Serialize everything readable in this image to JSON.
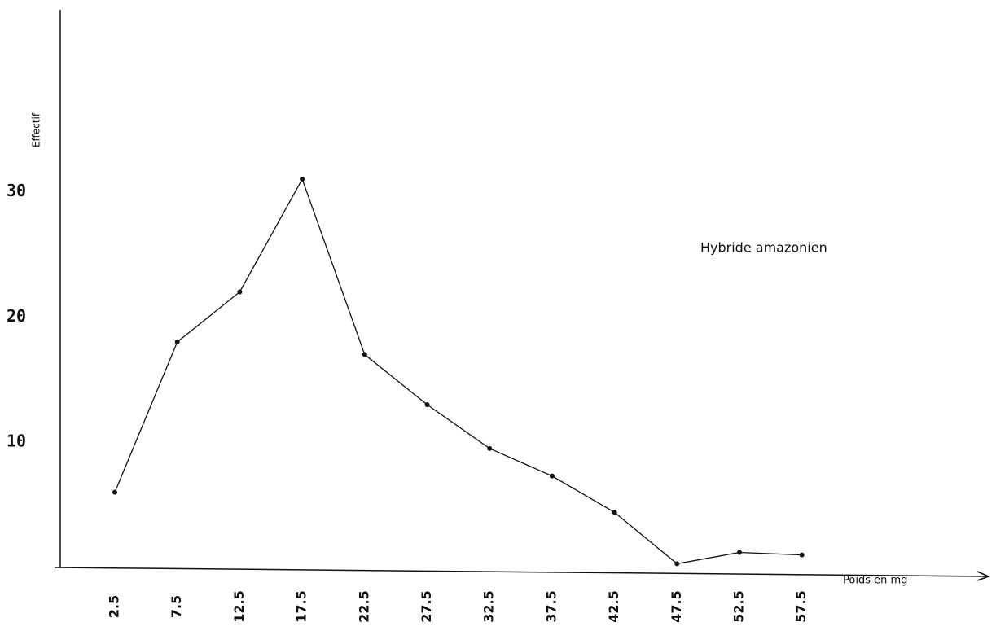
{
  "chart_data": {
    "type": "line",
    "y_label": "Effectif",
    "x_label": "Poids en mg",
    "annotation": "Hybride amazonien",
    "categories": [
      "2.5",
      "7.5",
      "12.5",
      "17.5",
      "22.5",
      "27.5",
      "32.5",
      "37.5",
      "42.5",
      "47.5",
      "52.5",
      "57.5"
    ],
    "values": [
      6,
      18,
      22,
      31,
      17,
      13,
      9.5,
      7.3,
      4.4,
      0.3,
      1.2,
      1.0
    ],
    "color": "#111111",
    "ylim": [
      0,
      44
    ],
    "yticks": [
      10,
      20,
      30
    ],
    "grid": false
  }
}
